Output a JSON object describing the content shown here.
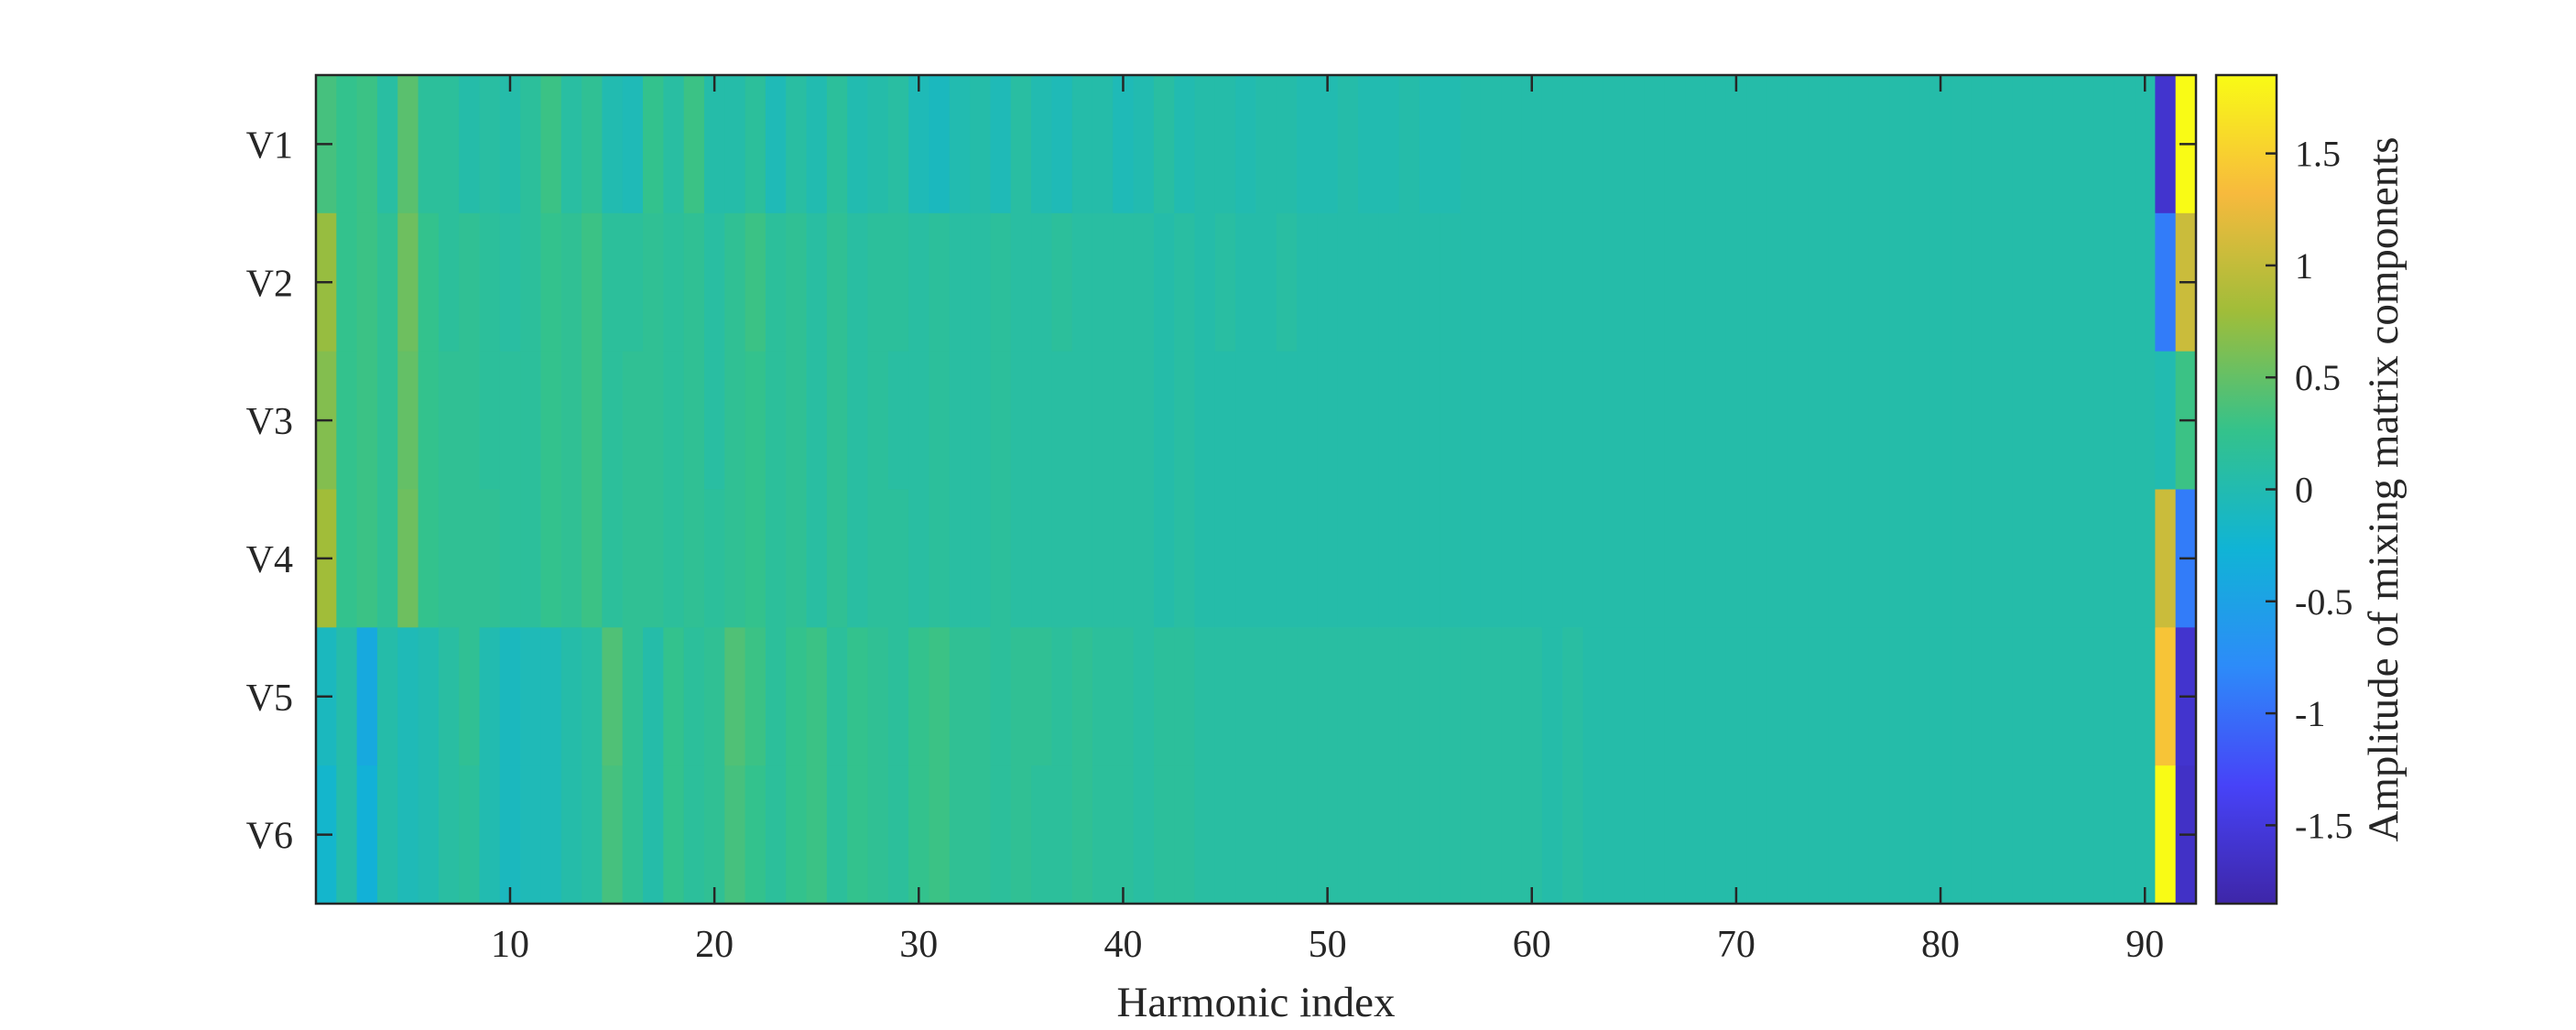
{
  "chart_data": {
    "type": "heatmap",
    "title": "",
    "xlabel": "Harmonic index",
    "ylabel": "",
    "colorbar_label": "Amplitude of mixing matrix components",
    "rows": [
      "V1",
      "V2",
      "V3",
      "V4",
      "V5",
      "V6"
    ],
    "columns": {
      "start": 1,
      "end": 92,
      "count": 92
    },
    "xticks": [
      10,
      20,
      30,
      40,
      50,
      60,
      70,
      80,
      90
    ],
    "xtick_labels": [
      "10",
      "20",
      "30",
      "40",
      "50",
      "60",
      "70",
      "80",
      "90"
    ],
    "clim": [
      -1.85,
      1.85
    ],
    "cbar_ticks": [
      1.5,
      1,
      0.5,
      0,
      -0.5,
      -1,
      -1.5
    ],
    "cbar_tick_labels": [
      "1.5",
      "1",
      "0.5",
      "0",
      "-0.5",
      "-1",
      "-1.5"
    ],
    "colormap": [
      "#3e26a8",
      "#4743f8",
      "#2d8bf9",
      "#10b4d5",
      "#34c28b",
      "#a0bd39",
      "#f7ba3d",
      "#f9fb15"
    ],
    "grid": false,
    "values": [
      [
        0.35,
        0.25,
        0.3,
        0.1,
        0.45,
        0.15,
        0.15,
        0.05,
        0.1,
        0.05,
        0.15,
        0.3,
        0.1,
        0.2,
        0.0,
        -0.05,
        0.25,
        0.1,
        0.3,
        0.05,
        0.05,
        0.15,
        -0.05,
        0.1,
        0.0,
        0.15,
        0.0,
        0.05,
        0.1,
        -0.05,
        -0.1,
        0.0,
        0.05,
        -0.05,
        0.1,
        0.0,
        -0.05,
        0.05,
        0.05,
        -0.05,
        0.0,
        0.1,
        0.0,
        0.05,
        0.05,
        0.0,
        0.05,
        0.05,
        0.0,
        0.0,
        0.05,
        0.0,
        0.0,
        0.05,
        0.0,
        0.0,
        0.05,
        0.05,
        0.05,
        0.05,
        0.05,
        0.05,
        0.05,
        0.05,
        0.05,
        0.05,
        0.05,
        0.05,
        0.05,
        0.05,
        0.05,
        0.05,
        0.05,
        0.05,
        0.05,
        0.05,
        0.05,
        0.05,
        0.05,
        0.05,
        0.05,
        0.05,
        0.05,
        0.05,
        0.05,
        0.05,
        0.05,
        0.05,
        0.05,
        0.05,
        -1.6,
        1.85
      ],
      [
        0.75,
        0.25,
        0.3,
        0.2,
        0.55,
        0.25,
        0.15,
        0.2,
        0.15,
        0.1,
        0.15,
        0.25,
        0.2,
        0.3,
        0.15,
        0.15,
        0.2,
        0.15,
        0.2,
        0.1,
        0.2,
        0.3,
        0.15,
        0.2,
        0.1,
        0.2,
        0.1,
        0.15,
        0.15,
        0.1,
        0.15,
        0.1,
        0.1,
        0.15,
        0.1,
        0.1,
        0.15,
        0.1,
        0.1,
        0.1,
        0.1,
        0.05,
        0.1,
        0.05,
        0.1,
        0.05,
        0.05,
        0.1,
        0.05,
        0.05,
        0.05,
        0.05,
        0.05,
        0.05,
        0.05,
        0.05,
        0.05,
        0.05,
        0.05,
        0.05,
        0.05,
        0.05,
        0.05,
        0.05,
        0.05,
        0.05,
        0.05,
        0.05,
        0.05,
        0.05,
        0.05,
        0.05,
        0.05,
        0.05,
        0.05,
        0.05,
        0.05,
        0.05,
        0.05,
        0.05,
        0.05,
        0.05,
        0.05,
        0.05,
        0.05,
        0.05,
        0.05,
        0.05,
        0.05,
        0.05,
        -0.9,
        1.05
      ],
      [
        0.65,
        0.25,
        0.3,
        0.2,
        0.5,
        0.25,
        0.2,
        0.2,
        0.15,
        0.15,
        0.15,
        0.25,
        0.2,
        0.3,
        0.15,
        0.2,
        0.2,
        0.15,
        0.2,
        0.1,
        0.2,
        0.25,
        0.15,
        0.2,
        0.1,
        0.2,
        0.1,
        0.15,
        0.1,
        0.1,
        0.15,
        0.1,
        0.1,
        0.15,
        0.1,
        0.1,
        0.1,
        0.1,
        0.1,
        0.1,
        0.1,
        0.05,
        0.1,
        0.05,
        0.05,
        0.05,
        0.05,
        0.05,
        0.05,
        0.05,
        0.05,
        0.05,
        0.05,
        0.05,
        0.05,
        0.05,
        0.05,
        0.05,
        0.05,
        0.05,
        0.05,
        0.05,
        0.05,
        0.05,
        0.05,
        0.05,
        0.05,
        0.05,
        0.05,
        0.05,
        0.05,
        0.05,
        0.05,
        0.05,
        0.05,
        0.05,
        0.05,
        0.05,
        0.05,
        0.05,
        0.05,
        0.05,
        0.05,
        0.05,
        0.05,
        0.05,
        0.05,
        0.05,
        0.05,
        0.05,
        0.0,
        0.3
      ],
      [
        0.8,
        0.25,
        0.3,
        0.2,
        0.55,
        0.25,
        0.2,
        0.2,
        0.2,
        0.15,
        0.15,
        0.25,
        0.2,
        0.3,
        0.15,
        0.2,
        0.2,
        0.15,
        0.2,
        0.15,
        0.2,
        0.25,
        0.15,
        0.2,
        0.1,
        0.2,
        0.1,
        0.15,
        0.15,
        0.1,
        0.15,
        0.1,
        0.1,
        0.15,
        0.1,
        0.1,
        0.1,
        0.1,
        0.1,
        0.1,
        0.1,
        0.05,
        0.1,
        0.05,
        0.05,
        0.05,
        0.05,
        0.05,
        0.05,
        0.05,
        0.05,
        0.05,
        0.05,
        0.05,
        0.05,
        0.05,
        0.05,
        0.05,
        0.05,
        0.05,
        0.05,
        0.05,
        0.05,
        0.05,
        0.05,
        0.05,
        0.05,
        0.05,
        0.05,
        0.05,
        0.05,
        0.05,
        0.05,
        0.05,
        0.05,
        0.05,
        0.05,
        0.05,
        0.05,
        0.05,
        0.05,
        0.05,
        0.05,
        0.05,
        0.05,
        0.05,
        0.05,
        0.05,
        0.05,
        0.05,
        1.05,
        -0.9
      ],
      [
        -0.1,
        0.05,
        -0.4,
        0.05,
        -0.05,
        0.0,
        0.1,
        0.2,
        0.0,
        -0.1,
        -0.05,
        -0.05,
        0.05,
        0.1,
        0.4,
        0.2,
        0.05,
        0.25,
        0.15,
        0.2,
        0.4,
        0.3,
        0.15,
        0.25,
        0.3,
        0.15,
        0.25,
        0.2,
        0.15,
        0.25,
        0.3,
        0.2,
        0.2,
        0.15,
        0.2,
        0.2,
        0.15,
        0.2,
        0.15,
        0.15,
        0.1,
        0.15,
        0.15,
        0.1,
        0.1,
        0.1,
        0.1,
        0.1,
        0.1,
        0.1,
        0.1,
        0.1,
        0.1,
        0.1,
        0.1,
        0.1,
        0.1,
        0.1,
        0.1,
        0.1,
        0.05,
        0.1,
        0.05,
        0.05,
        0.05,
        0.05,
        0.05,
        0.05,
        0.05,
        0.05,
        0.05,
        0.05,
        0.05,
        0.05,
        0.05,
        0.05,
        0.05,
        0.05,
        0.05,
        0.05,
        0.05,
        0.05,
        0.05,
        0.05,
        0.05,
        0.05,
        0.05,
        0.05,
        0.05,
        0.05,
        1.4,
        -1.6
      ],
      [
        -0.2,
        0.05,
        -0.3,
        0.05,
        -0.05,
        0.0,
        0.1,
        0.15,
        0.0,
        -0.1,
        -0.05,
        -0.05,
        0.05,
        0.1,
        0.35,
        0.2,
        0.05,
        0.25,
        0.15,
        0.2,
        0.35,
        0.25,
        0.15,
        0.25,
        0.3,
        0.15,
        0.25,
        0.2,
        0.15,
        0.25,
        0.3,
        0.2,
        0.2,
        0.15,
        0.2,
        0.15,
        0.15,
        0.2,
        0.15,
        0.15,
        0.1,
        0.15,
        0.15,
        0.1,
        0.1,
        0.1,
        0.1,
        0.1,
        0.1,
        0.1,
        0.1,
        0.1,
        0.1,
        0.1,
        0.1,
        0.1,
        0.1,
        0.1,
        0.1,
        0.1,
        0.05,
        0.1,
        0.05,
        0.05,
        0.05,
        0.05,
        0.05,
        0.05,
        0.05,
        0.05,
        0.05,
        0.05,
        0.05,
        0.05,
        0.05,
        0.05,
        0.05,
        0.05,
        0.05,
        0.05,
        0.05,
        0.05,
        0.05,
        0.05,
        0.05,
        0.05,
        0.05,
        0.05,
        0.05,
        0.05,
        1.85,
        -1.65
      ]
    ]
  }
}
